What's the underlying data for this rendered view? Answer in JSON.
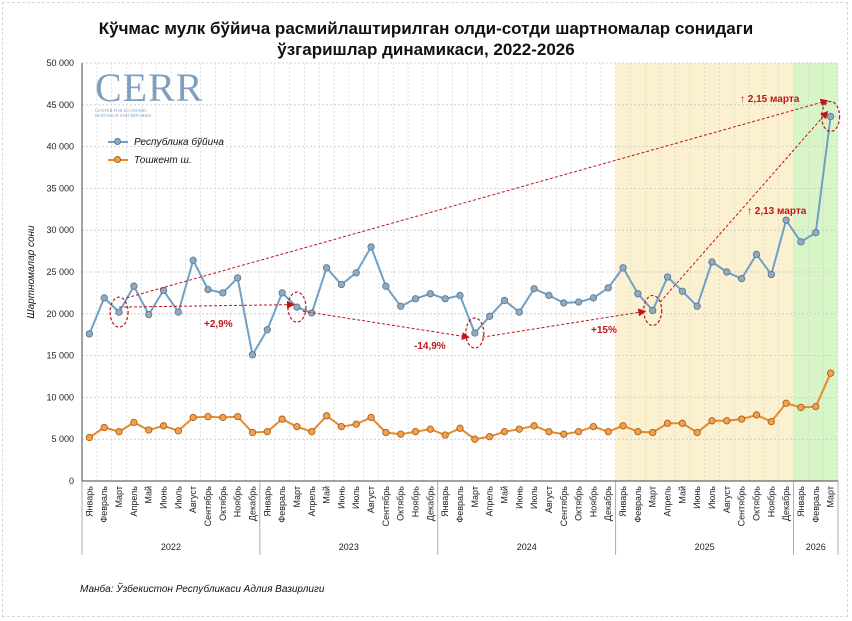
{
  "title_line1": "Кўчмас мулк бўйича расмийлаштирилган олди-сотди шартномалар сонидаги",
  "title_line2": "ўзгаришлар динамикаси, 2022-2026",
  "source": "Манба: Ўзбекистон Республикаси Адлия Вазирлиги",
  "logo": {
    "text": "CERR",
    "subtitle": "CENTER FOR ECONOMIC RESEARCH AND REFORMS"
  },
  "colors": {
    "republic": "#6fa0c6",
    "republic_marker": "#9aa7b4",
    "tashkent": "#e28b2f",
    "tashkent_marker": "#f0a050",
    "arrow": "#c0161a",
    "band_2025": "#fbf0d0",
    "band_2026": "#d8f5c8"
  },
  "chart_data": {
    "type": "line",
    "ylabel": "Шартномалар сони",
    "ylim": [
      0,
      50000
    ],
    "yticks": [
      "0",
      "5 000",
      "10 000",
      "15 000",
      "20 000",
      "25 000",
      "30 000",
      "35 000",
      "40 000",
      "45 000",
      "50 000"
    ],
    "grid": true,
    "legend": "top-left",
    "months": [
      "Январь",
      "Февраль",
      "Март",
      "Апрель",
      "Май",
      "Июнь",
      "Июль",
      "Август",
      "Сентябрь",
      "Октябрь",
      "Ноябрь",
      "Декабрь",
      "Январь",
      "Февраль",
      "Март",
      "Апрель",
      "Май",
      "Июнь",
      "Июль",
      "Август",
      "Сентябрь",
      "Октябрь",
      "Ноябрь",
      "Декабрь",
      "Январь",
      "Февраль",
      "Март",
      "Апрель",
      "Май",
      "Июнь",
      "Июль",
      "Август",
      "Сентябрь",
      "Октябрь",
      "Ноябрь",
      "Декабрь",
      "Январь",
      "Февраль",
      "Март",
      "Апрель",
      "Май",
      "Июнь",
      "Июль",
      "Август",
      "Сентябрь",
      "Октябрь",
      "Ноябрь",
      "Декабрь",
      "Январь",
      "Февраль",
      "Март"
    ],
    "years": [
      {
        "label": "2022",
        "months": 12
      },
      {
        "label": "2023",
        "months": 12
      },
      {
        "label": "2024",
        "months": 12
      },
      {
        "label": "2025",
        "months": 12
      },
      {
        "label": "2026",
        "months": 3
      }
    ],
    "series": [
      {
        "name": "Республика бўйича",
        "values": [
          17600,
          21900,
          20200,
          23300,
          19900,
          22800,
          20200,
          26400,
          22900,
          22500,
          24300,
          15100,
          18100,
          22500,
          20800,
          20100,
          25500,
          23500,
          24900,
          28000,
          23300,
          20900,
          21800,
          22400,
          21800,
          22200,
          17700,
          19700,
          21600,
          20200,
          23000,
          22200,
          21300,
          21400,
          21900,
          23100,
          25500,
          22400,
          20400,
          24400,
          22700,
          20900,
          26200,
          25000,
          24200,
          27100,
          24700,
          31200,
          28600,
          29700,
          43600
        ]
      },
      {
        "name": "Тошкент ш.",
        "values": [
          5200,
          6400,
          5900,
          7000,
          6100,
          6600,
          6000,
          7600,
          7700,
          7600,
          7700,
          5800,
          5900,
          7400,
          6500,
          5900,
          7800,
          6500,
          6800,
          7600,
          5800,
          5600,
          5900,
          6200,
          5500,
          6300,
          5000,
          5300,
          5900,
          6200,
          6600,
          5900,
          5600,
          5900,
          6500,
          5900,
          6600,
          5900,
          5800,
          6900,
          6900,
          5800,
          7200,
          7200,
          7400,
          7900,
          7100,
          9300,
          8800,
          8900,
          12900
        ]
      }
    ],
    "annotations": [
      "+2,9%",
      "-14,9%",
      "+15%",
      "↑ 2,13 марта",
      "↑ 2,15 марта"
    ]
  }
}
